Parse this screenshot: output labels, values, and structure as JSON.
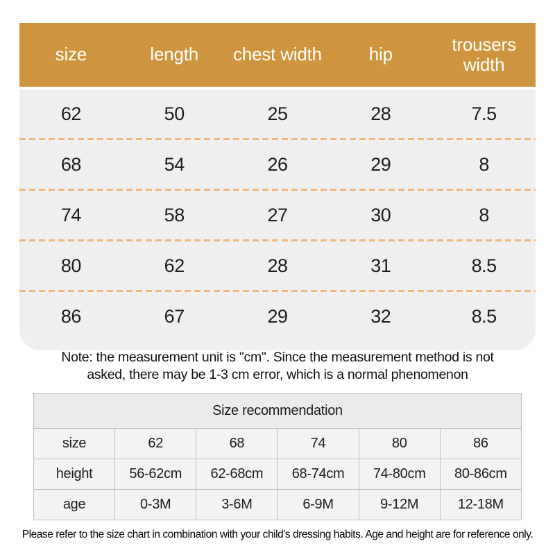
{
  "colors": {
    "header_bg": "#ce953e",
    "body_bg": "#efefef",
    "dash_line": "#f0b57b",
    "table_border": "#bdbdbd"
  },
  "size_chart": {
    "columns": [
      "size",
      "length",
      "chest width",
      "hip",
      "trousers width"
    ],
    "rows": [
      [
        "62",
        "50",
        "25",
        "28",
        "7.5"
      ],
      [
        "68",
        "54",
        "26",
        "29",
        "8"
      ],
      [
        "74",
        "58",
        "27",
        "30",
        "8"
      ],
      [
        "80",
        "62",
        "28",
        "31",
        "8.5"
      ],
      [
        "86",
        "67",
        "29",
        "32",
        "8.5"
      ]
    ]
  },
  "note": "Note: the measurement unit is \"cm\". Since the measurement method is not asked, there may be 1-3 cm error, which is a normal phenomenon",
  "recommendation": {
    "title": "Size recommendation",
    "rows": [
      [
        "size",
        "62",
        "68",
        "74",
        "80",
        "86"
      ],
      [
        "height",
        "56-62cm",
        "62-68cm",
        "68-74cm",
        "74-80cm",
        "80-86cm"
      ],
      [
        "age",
        "0-3M",
        "3-6M",
        "6-9M",
        "9-12M",
        "12-18M"
      ]
    ]
  },
  "footer": "Please refer to the size chart in combination with your child's dressing habits. Age and height are for reference only."
}
